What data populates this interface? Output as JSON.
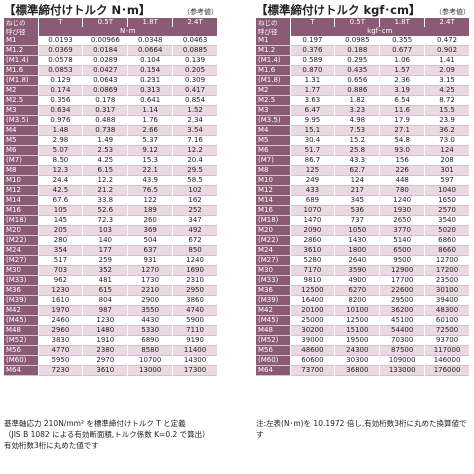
{
  "left": {
    "title": "【標準締付けトルク N･m】",
    "ref": "（参考値）",
    "corner_label_1": "ねじの",
    "corner_label_2": "呼び径",
    "columns": [
      "T",
      "0.5T",
      "1.8T",
      "2.4T"
    ],
    "unit": "N･m",
    "rows": [
      [
        "M1",
        "0.0193",
        "0.00966",
        "0.0348",
        "0.0463"
      ],
      [
        "M1.2",
        "0.0369",
        "0.0184",
        "0.0664",
        "0.0885"
      ],
      [
        "(M1.4)",
        "0.0578",
        "0.0289",
        "0.104",
        "0.139"
      ],
      [
        "M1.6",
        "0.0853",
        "0.0427",
        "0.154",
        "0.205"
      ],
      [
        "(M1.8)",
        "0.129",
        "0.0643",
        "0.231",
        "0.309"
      ],
      [
        "M2",
        "0.174",
        "0.0869",
        "0.313",
        "0.417"
      ],
      [
        "M2.5",
        "0.356",
        "0.178",
        "0.641",
        "0.854"
      ],
      [
        "M3",
        "0.634",
        "0.317",
        "1.14",
        "1.52"
      ],
      [
        "(M3.5)",
        "0.976",
        "0.488",
        "1.76",
        "2.34"
      ],
      [
        "M4",
        "1.48",
        "0.738",
        "2.66",
        "3.54"
      ],
      [
        "M5",
        "2.98",
        "1.49",
        "5.37",
        "7.16"
      ],
      [
        "M6",
        "5.07",
        "2.53",
        "9.12",
        "12.2"
      ],
      [
        "(M7)",
        "8.50",
        "4.25",
        "15.3",
        "20.4"
      ],
      [
        "M8",
        "12.3",
        "6.15",
        "22.1",
        "29.5"
      ],
      [
        "M10",
        "24.4",
        "12.2",
        "43.9",
        "58.5"
      ],
      [
        "M12",
        "42.5",
        "21.2",
        "76.5",
        "102"
      ],
      [
        "M14",
        "67.6",
        "33.8",
        "122",
        "162"
      ],
      [
        "M16",
        "105",
        "52.6",
        "189",
        "252"
      ],
      [
        "(M18)",
        "145",
        "72.3",
        "260",
        "347"
      ],
      [
        "M20",
        "205",
        "103",
        "369",
        "492"
      ],
      [
        "(M22)",
        "280",
        "140",
        "504",
        "672"
      ],
      [
        "M24",
        "354",
        "177",
        "637",
        "850"
      ],
      [
        "(M27)",
        "517",
        "259",
        "931",
        "1240"
      ],
      [
        "M30",
        "703",
        "352",
        "1270",
        "1690"
      ],
      [
        "(M33)",
        "962",
        "481",
        "1730",
        "2310"
      ],
      [
        "M36",
        "1230",
        "615",
        "2210",
        "2950"
      ],
      [
        "(M39)",
        "1610",
        "804",
        "2900",
        "3860"
      ],
      [
        "M42",
        "1970",
        "987",
        "3550",
        "4740"
      ],
      [
        "(M45)",
        "2460",
        "1230",
        "4430",
        "5900"
      ],
      [
        "M48",
        "2960",
        "1480",
        "5330",
        "7110"
      ],
      [
        "(M52)",
        "3830",
        "1910",
        "6890",
        "9190"
      ],
      [
        "M56",
        "4770",
        "2380",
        "8580",
        "11400"
      ],
      [
        "(M60)",
        "5950",
        "2970",
        "10700",
        "14300"
      ],
      [
        "M64",
        "7230",
        "3610",
        "13000",
        "17300"
      ]
    ],
    "notes": [
      "基準軸応力 210N/mm² を標準締付けトルク T と定義",
      "（JIS B 1082 による有効断面積,トルク係数 K=0.2 で算出）",
      "有効桁数3桁に丸めた値です"
    ]
  },
  "right": {
    "title": "【標準締付けトルク kgf･cm】",
    "ref": "（参考値）",
    "corner_label_1": "ねじの",
    "corner_label_2": "呼び径",
    "columns": [
      "T",
      "0.5T",
      "1.8T",
      "2.4T"
    ],
    "unit": "kgf･cm",
    "rows": [
      [
        "M1",
        "0.197",
        "0.0985",
        "0.355",
        "0.472"
      ],
      [
        "M1.2",
        "0.376",
        "0.188",
        "0.677",
        "0.902"
      ],
      [
        "(M1.4)",
        "0.589",
        "0.295",
        "1.06",
        "1.41"
      ],
      [
        "M1.6",
        "0.870",
        "0.435",
        "1.57",
        "2.09"
      ],
      [
        "(M1.8)",
        "1.31",
        "0.656",
        "2.36",
        "3.15"
      ],
      [
        "M2",
        "1.77",
        "0.886",
        "3.19",
        "4.25"
      ],
      [
        "M2.5",
        "3.63",
        "1.82",
        "6.54",
        "8.72"
      ],
      [
        "M3",
        "6.47",
        "3.23",
        "11.6",
        "15.5"
      ],
      [
        "(M3.5)",
        "9.95",
        "4.98",
        "17.9",
        "23.9"
      ],
      [
        "M4",
        "15.1",
        "7.53",
        "27.1",
        "36.2"
      ],
      [
        "M5",
        "30.4",
        "15.2",
        "54.8",
        "73.0"
      ],
      [
        "M6",
        "51.7",
        "25.8",
        "93.0",
        "124"
      ],
      [
        "(M7)",
        "86.7",
        "43.3",
        "156",
        "208"
      ],
      [
        "M8",
        "125",
        "62.7",
        "226",
        "301"
      ],
      [
        "M10",
        "249",
        "124",
        "448",
        "597"
      ],
      [
        "M12",
        "433",
        "217",
        "780",
        "1040"
      ],
      [
        "M14",
        "689",
        "345",
        "1240",
        "1650"
      ],
      [
        "M16",
        "1070",
        "536",
        "1930",
        "2570"
      ],
      [
        "(M18)",
        "1470",
        "737",
        "2650",
        "3540"
      ],
      [
        "M20",
        "2090",
        "1050",
        "3770",
        "5020"
      ],
      [
        "(M22)",
        "2860",
        "1430",
        "5140",
        "6860"
      ],
      [
        "M24",
        "3610",
        "1800",
        "6500",
        "8660"
      ],
      [
        "(M27)",
        "5280",
        "2640",
        "9500",
        "12700"
      ],
      [
        "M30",
        "7170",
        "3590",
        "12900",
        "17200"
      ],
      [
        "(M33)",
        "9810",
        "4900",
        "17700",
        "23500"
      ],
      [
        "M36",
        "12500",
        "6270",
        "22600",
        "30100"
      ],
      [
        "(M39)",
        "16400",
        "8200",
        "29500",
        "39400"
      ],
      [
        "M42",
        "20100",
        "10100",
        "36200",
        "48300"
      ],
      [
        "(M45)",
        "25000",
        "12500",
        "45100",
        "60100"
      ],
      [
        "M48",
        "30200",
        "15100",
        "54400",
        "72500"
      ],
      [
        "(M52)",
        "39000",
        "19500",
        "70300",
        "93700"
      ],
      [
        "M56",
        "48600",
        "24300",
        "87500",
        "117000"
      ],
      [
        "(M60)",
        "60600",
        "30300",
        "109000",
        "146000"
      ],
      [
        "M64",
        "73700",
        "36800",
        "133000",
        "176000"
      ]
    ],
    "notes": [
      "注:左表(N･m)を 10.1972 倍し,有効桁数3桁に丸めた換算値です"
    ]
  }
}
